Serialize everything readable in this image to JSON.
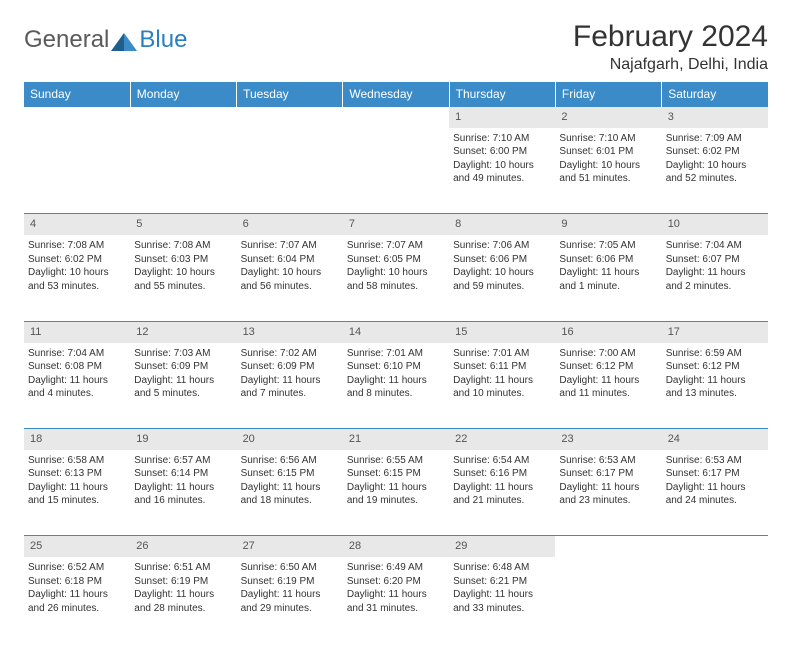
{
  "logo": {
    "general": "General",
    "blue": "Blue",
    "icon_color": "#2a7fbf"
  },
  "title": "February 2024",
  "location": "Najafgarh, Delhi, India",
  "colors": {
    "header_bg": "#3b8bc9",
    "header_text": "#ffffff",
    "daynum_bg": "#e8e8e8",
    "row_border": "#3b8bc9",
    "text": "#333333"
  },
  "weekdays": [
    "Sunday",
    "Monday",
    "Tuesday",
    "Wednesday",
    "Thursday",
    "Friday",
    "Saturday"
  ],
  "weeks": [
    {
      "days": [
        null,
        null,
        null,
        null,
        {
          "n": "1",
          "sunrise": "Sunrise: 7:10 AM",
          "sunset": "Sunset: 6:00 PM",
          "day1": "Daylight: 10 hours",
          "day2": "and 49 minutes."
        },
        {
          "n": "2",
          "sunrise": "Sunrise: 7:10 AM",
          "sunset": "Sunset: 6:01 PM",
          "day1": "Daylight: 10 hours",
          "day2": "and 51 minutes."
        },
        {
          "n": "3",
          "sunrise": "Sunrise: 7:09 AM",
          "sunset": "Sunset: 6:02 PM",
          "day1": "Daylight: 10 hours",
          "day2": "and 52 minutes."
        }
      ]
    },
    {
      "days": [
        {
          "n": "4",
          "sunrise": "Sunrise: 7:08 AM",
          "sunset": "Sunset: 6:02 PM",
          "day1": "Daylight: 10 hours",
          "day2": "and 53 minutes."
        },
        {
          "n": "5",
          "sunrise": "Sunrise: 7:08 AM",
          "sunset": "Sunset: 6:03 PM",
          "day1": "Daylight: 10 hours",
          "day2": "and 55 minutes."
        },
        {
          "n": "6",
          "sunrise": "Sunrise: 7:07 AM",
          "sunset": "Sunset: 6:04 PM",
          "day1": "Daylight: 10 hours",
          "day2": "and 56 minutes."
        },
        {
          "n": "7",
          "sunrise": "Sunrise: 7:07 AM",
          "sunset": "Sunset: 6:05 PM",
          "day1": "Daylight: 10 hours",
          "day2": "and 58 minutes."
        },
        {
          "n": "8",
          "sunrise": "Sunrise: 7:06 AM",
          "sunset": "Sunset: 6:06 PM",
          "day1": "Daylight: 10 hours",
          "day2": "and 59 minutes."
        },
        {
          "n": "9",
          "sunrise": "Sunrise: 7:05 AM",
          "sunset": "Sunset: 6:06 PM",
          "day1": "Daylight: 11 hours",
          "day2": "and 1 minute."
        },
        {
          "n": "10",
          "sunrise": "Sunrise: 7:04 AM",
          "sunset": "Sunset: 6:07 PM",
          "day1": "Daylight: 11 hours",
          "day2": "and 2 minutes."
        }
      ]
    },
    {
      "days": [
        {
          "n": "11",
          "sunrise": "Sunrise: 7:04 AM",
          "sunset": "Sunset: 6:08 PM",
          "day1": "Daylight: 11 hours",
          "day2": "and 4 minutes."
        },
        {
          "n": "12",
          "sunrise": "Sunrise: 7:03 AM",
          "sunset": "Sunset: 6:09 PM",
          "day1": "Daylight: 11 hours",
          "day2": "and 5 minutes."
        },
        {
          "n": "13",
          "sunrise": "Sunrise: 7:02 AM",
          "sunset": "Sunset: 6:09 PM",
          "day1": "Daylight: 11 hours",
          "day2": "and 7 minutes."
        },
        {
          "n": "14",
          "sunrise": "Sunrise: 7:01 AM",
          "sunset": "Sunset: 6:10 PM",
          "day1": "Daylight: 11 hours",
          "day2": "and 8 minutes."
        },
        {
          "n": "15",
          "sunrise": "Sunrise: 7:01 AM",
          "sunset": "Sunset: 6:11 PM",
          "day1": "Daylight: 11 hours",
          "day2": "and 10 minutes."
        },
        {
          "n": "16",
          "sunrise": "Sunrise: 7:00 AM",
          "sunset": "Sunset: 6:12 PM",
          "day1": "Daylight: 11 hours",
          "day2": "and 11 minutes."
        },
        {
          "n": "17",
          "sunrise": "Sunrise: 6:59 AM",
          "sunset": "Sunset: 6:12 PM",
          "day1": "Daylight: 11 hours",
          "day2": "and 13 minutes."
        }
      ]
    },
    {
      "days": [
        {
          "n": "18",
          "sunrise": "Sunrise: 6:58 AM",
          "sunset": "Sunset: 6:13 PM",
          "day1": "Daylight: 11 hours",
          "day2": "and 15 minutes."
        },
        {
          "n": "19",
          "sunrise": "Sunrise: 6:57 AM",
          "sunset": "Sunset: 6:14 PM",
          "day1": "Daylight: 11 hours",
          "day2": "and 16 minutes."
        },
        {
          "n": "20",
          "sunrise": "Sunrise: 6:56 AM",
          "sunset": "Sunset: 6:15 PM",
          "day1": "Daylight: 11 hours",
          "day2": "and 18 minutes."
        },
        {
          "n": "21",
          "sunrise": "Sunrise: 6:55 AM",
          "sunset": "Sunset: 6:15 PM",
          "day1": "Daylight: 11 hours",
          "day2": "and 19 minutes."
        },
        {
          "n": "22",
          "sunrise": "Sunrise: 6:54 AM",
          "sunset": "Sunset: 6:16 PM",
          "day1": "Daylight: 11 hours",
          "day2": "and 21 minutes."
        },
        {
          "n": "23",
          "sunrise": "Sunrise: 6:53 AM",
          "sunset": "Sunset: 6:17 PM",
          "day1": "Daylight: 11 hours",
          "day2": "and 23 minutes."
        },
        {
          "n": "24",
          "sunrise": "Sunrise: 6:53 AM",
          "sunset": "Sunset: 6:17 PM",
          "day1": "Daylight: 11 hours",
          "day2": "and 24 minutes."
        }
      ]
    },
    {
      "days": [
        {
          "n": "25",
          "sunrise": "Sunrise: 6:52 AM",
          "sunset": "Sunset: 6:18 PM",
          "day1": "Daylight: 11 hours",
          "day2": "and 26 minutes."
        },
        {
          "n": "26",
          "sunrise": "Sunrise: 6:51 AM",
          "sunset": "Sunset: 6:19 PM",
          "day1": "Daylight: 11 hours",
          "day2": "and 28 minutes."
        },
        {
          "n": "27",
          "sunrise": "Sunrise: 6:50 AM",
          "sunset": "Sunset: 6:19 PM",
          "day1": "Daylight: 11 hours",
          "day2": "and 29 minutes."
        },
        {
          "n": "28",
          "sunrise": "Sunrise: 6:49 AM",
          "sunset": "Sunset: 6:20 PM",
          "day1": "Daylight: 11 hours",
          "day2": "and 31 minutes."
        },
        {
          "n": "29",
          "sunrise": "Sunrise: 6:48 AM",
          "sunset": "Sunset: 6:21 PM",
          "day1": "Daylight: 11 hours",
          "day2": "and 33 minutes."
        },
        null,
        null
      ]
    }
  ]
}
